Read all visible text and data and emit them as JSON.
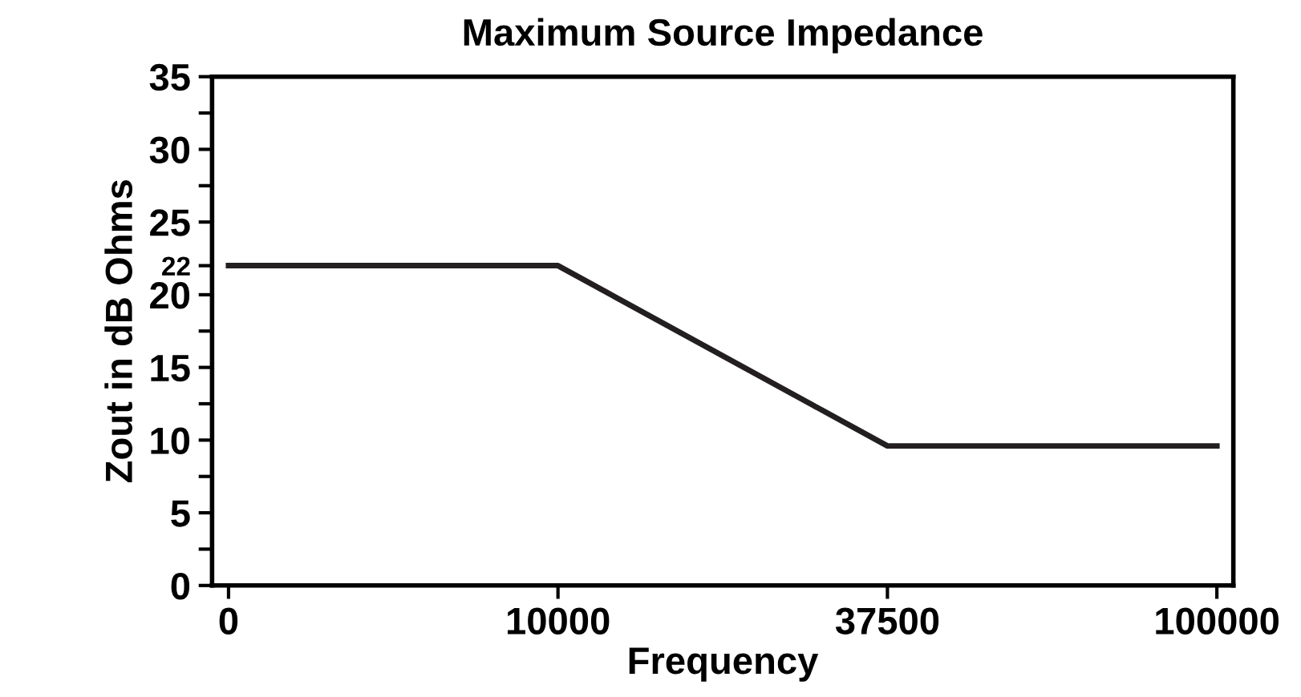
{
  "chart_data": {
    "type": "line",
    "title": "Maximum Source Impedance",
    "xlabel": "Frequency",
    "ylabel": "Zout in dB Ohms",
    "categories": [
      "0",
      "10000",
      "37500",
      "100000"
    ],
    "series": [
      {
        "color": "#231f20",
        "values": [
          22,
          22,
          9.6,
          9.6
        ]
      }
    ],
    "ylim": [
      0,
      35
    ],
    "yticks": [
      0,
      {
        "value": 2.5,
        "label": null
      },
      5,
      {
        "value": 7.5,
        "label": null
      },
      10,
      {
        "value": 12.5,
        "label": null
      },
      15,
      {
        "value": 17.5,
        "label": null
      },
      20,
      22,
      25,
      {
        "value": 27.5,
        "label": null
      },
      30,
      {
        "value": 32.5,
        "label": null
      },
      35
    ],
    "grid": false,
    "marker": "none",
    "line_style": "solid"
  }
}
